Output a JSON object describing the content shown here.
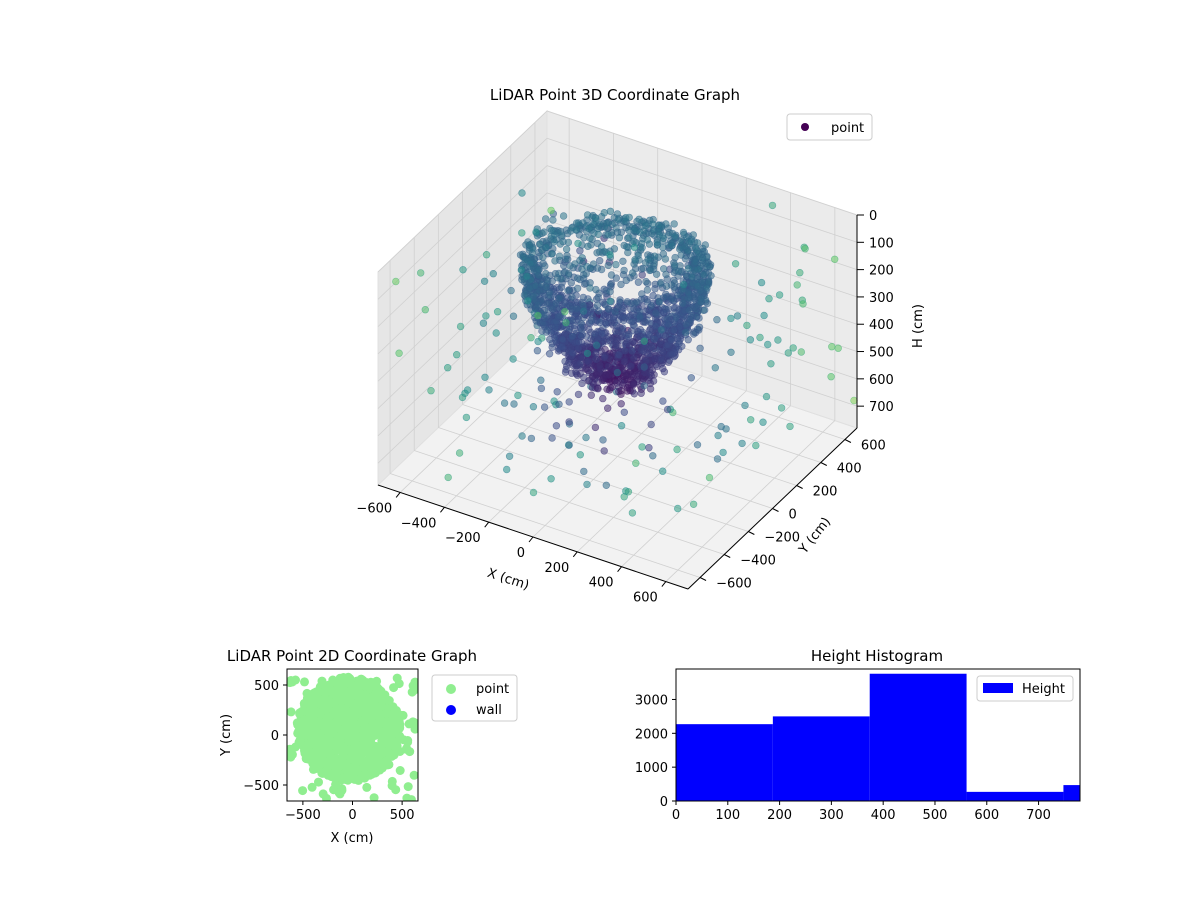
{
  "chart_data": [
    {
      "type": "scatter",
      "dimensions": 3,
      "title": "LiDAR Point 3D Coordinate Graph",
      "xlabel": "X (cm)",
      "ylabel": "Y (cm)",
      "zlabel": "H (cm)",
      "x_ticks": [
        "−600",
        "−400",
        "−200",
        "0",
        "200",
        "400",
        "600"
      ],
      "y_ticks": [
        "−600",
        "−400",
        "−200",
        "0",
        "200",
        "400",
        "600"
      ],
      "z_ticks": [
        "0",
        "100",
        "200",
        "300",
        "400",
        "500",
        "600",
        "700"
      ],
      "xlim": [
        -700,
        700
      ],
      "ylim": [
        -700,
        700
      ],
      "zlim": [
        0,
        780
      ],
      "z_axis_inverted": true,
      "colormap": "viridis",
      "legend": {
        "entries": [
          "point"
        ],
        "placement": "top-right"
      },
      "grid": true,
      "series": [
        {
          "name": "point",
          "color": "#440154",
          "description_of_points": "dense bowl-shaped cloud of points around the origin, sparse outliers across the full x/y range at all heights"
        }
      ]
    },
    {
      "type": "scatter",
      "title": "LiDAR Point 2D Coordinate Graph",
      "xlabel": "X (cm)",
      "ylabel": "Y (cm)",
      "x_ticks": [
        "−500",
        "0",
        "500"
      ],
      "y_ticks": [
        "500",
        "0",
        "−500"
      ],
      "xlim": [
        -660,
        660
      ],
      "ylim": [
        -660,
        660
      ],
      "legend": {
        "entries": [
          "point",
          "wall"
        ],
        "placement": "outside-right"
      },
      "grid": false,
      "series": [
        {
          "name": "point",
          "color": "#90ee90"
        },
        {
          "name": "wall",
          "color": "#0000ff"
        }
      ]
    },
    {
      "type": "bar",
      "subtype": "histogram",
      "title": "Height Histogram",
      "xlabel": "",
      "ylabel": "",
      "x_ticks": [
        "0",
        "100",
        "200",
        "300",
        "400",
        "500",
        "600",
        "700"
      ],
      "y_ticks": [
        "0",
        "1000",
        "2000",
        "3000"
      ],
      "xlim": [
        0,
        780
      ],
      "ylim": [
        0,
        3900
      ],
      "bin_edges": [
        0,
        187,
        374,
        561,
        748,
        780
      ],
      "values": [
        2270,
        2500,
        3760,
        270,
        470
      ],
      "color": "#0000ff",
      "legend": {
        "entries": [
          "Height"
        ],
        "placement": "top-right"
      },
      "grid": false,
      "series": [
        {
          "name": "Height",
          "values": [
            2270,
            2500,
            3760,
            270,
            470
          ]
        }
      ]
    }
  ]
}
